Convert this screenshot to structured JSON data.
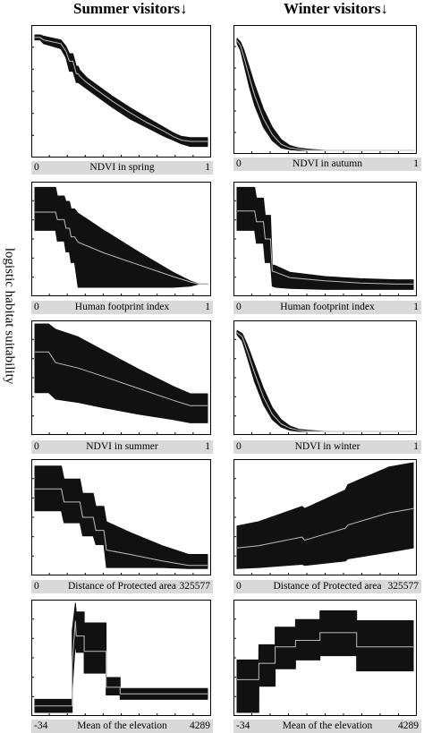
{
  "columns": [
    {
      "title": "Summer visitors↓"
    },
    {
      "title": "Winter visitors↓"
    }
  ],
  "ylabel": "logistic habitat suitability",
  "chart_data": [
    {
      "id": "p1",
      "type": "area",
      "title": "",
      "xlabel": "NDVI in spring",
      "xmin_label": "0",
      "xmax_label": "1",
      "xlim": [
        0,
        1
      ],
      "ylim": [
        0,
        1
      ],
      "x": [
        0,
        0.03,
        0.05,
        0.15,
        0.18,
        0.2,
        0.22,
        0.24,
        0.25,
        0.26,
        0.3,
        0.35,
        0.45,
        0.55,
        0.65,
        0.75,
        0.8,
        0.85,
        0.9,
        0.95,
        1.0
      ],
      "mean": [
        0.93,
        0.93,
        0.91,
        0.88,
        0.82,
        0.74,
        0.74,
        0.64,
        0.64,
        0.62,
        0.57,
        0.52,
        0.42,
        0.33,
        0.25,
        0.18,
        0.14,
        0.11,
        0.1,
        0.1,
        0.1
      ],
      "upper": [
        0.95,
        0.95,
        0.94,
        0.91,
        0.86,
        0.8,
        0.8,
        0.7,
        0.7,
        0.67,
        0.61,
        0.56,
        0.46,
        0.37,
        0.29,
        0.21,
        0.17,
        0.14,
        0.13,
        0.13,
        0.13
      ],
      "lower": [
        0.91,
        0.91,
        0.88,
        0.84,
        0.77,
        0.66,
        0.66,
        0.57,
        0.57,
        0.56,
        0.52,
        0.47,
        0.37,
        0.28,
        0.21,
        0.14,
        0.11,
        0.08,
        0.06,
        0.06,
        0.06
      ]
    },
    {
      "id": "p2",
      "type": "area",
      "title": "",
      "xlabel": "NDVI  in autumn",
      "xmin_label": "0",
      "xmax_label": "1",
      "xlim": [
        0,
        1
      ],
      "ylim": [
        0,
        1
      ],
      "x": [
        0,
        0.02,
        0.04,
        0.07,
        0.1,
        0.15,
        0.2,
        0.25,
        0.3,
        0.35,
        0.4,
        0.5,
        0.7,
        1.0
      ],
      "mean": [
        0.9,
        0.86,
        0.76,
        0.6,
        0.45,
        0.26,
        0.13,
        0.05,
        0.02,
        0.01,
        0.0,
        0.0,
        0.0,
        0.0
      ],
      "upper": [
        0.92,
        0.89,
        0.82,
        0.68,
        0.54,
        0.34,
        0.19,
        0.09,
        0.04,
        0.02,
        0.01,
        0.0,
        0.0,
        0.0
      ],
      "lower": [
        0.88,
        0.82,
        0.7,
        0.52,
        0.37,
        0.19,
        0.08,
        0.02,
        0.005,
        0.0,
        0.0,
        0.0,
        0.0,
        0.0
      ]
    },
    {
      "id": "p3",
      "type": "area",
      "title": "",
      "xlabel": "Human footprint index",
      "xmin_label": "0",
      "xmax_label": "1",
      "xlim": [
        0,
        1
      ],
      "ylim": [
        0,
        1
      ],
      "x": [
        0,
        0.12,
        0.13,
        0.17,
        0.18,
        0.2,
        0.21,
        0.23,
        0.25,
        0.4,
        0.6,
        0.8,
        0.9,
        0.95,
        1.0
      ],
      "mean": [
        0.75,
        0.75,
        0.68,
        0.68,
        0.6,
        0.6,
        0.52,
        0.52,
        0.47,
        0.37,
        0.26,
        0.15,
        0.1,
        0.08,
        0.08
      ],
      "upper": [
        0.98,
        0.98,
        0.9,
        0.9,
        0.85,
        0.85,
        0.78,
        0.78,
        0.74,
        0.58,
        0.38,
        0.19,
        0.11,
        0.08,
        0.08
      ],
      "lower": [
        0.58,
        0.58,
        0.48,
        0.48,
        0.38,
        0.38,
        0.28,
        0.28,
        0.05,
        0.05,
        0.05,
        0.05,
        0.06,
        0.08,
        0.08
      ]
    },
    {
      "id": "p4",
      "type": "area",
      "title": "",
      "xlabel": "Human footprint index",
      "xmin_label": "0",
      "xmax_label": "1",
      "xlim": [
        0,
        1
      ],
      "ylim": [
        0,
        1
      ],
      "x": [
        0,
        0.1,
        0.11,
        0.15,
        0.16,
        0.19,
        0.2,
        0.22,
        0.3,
        0.5,
        0.7,
        0.9,
        1.0
      ],
      "mean": [
        0.76,
        0.76,
        0.66,
        0.66,
        0.5,
        0.5,
        0.2,
        0.19,
        0.14,
        0.11,
        0.09,
        0.08,
        0.08
      ],
      "upper": [
        0.98,
        0.98,
        0.88,
        0.88,
        0.72,
        0.72,
        0.26,
        0.25,
        0.19,
        0.15,
        0.13,
        0.12,
        0.12
      ],
      "lower": [
        0.58,
        0.58,
        0.46,
        0.46,
        0.28,
        0.28,
        0.06,
        0.05,
        0.04,
        0.03,
        0.03,
        0.03,
        0.03
      ]
    },
    {
      "id": "p5",
      "type": "area",
      "title": "",
      "xlabel": "NDVI  in summer",
      "xmin_label": "0",
      "xmax_label": "1",
      "xlim": [
        0,
        1
      ],
      "ylim": [
        0,
        1
      ],
      "x": [
        0,
        0.08,
        0.12,
        0.25,
        0.4,
        0.6,
        0.8,
        0.9,
        1.0
      ],
      "mean": [
        0.74,
        0.74,
        0.64,
        0.59,
        0.51,
        0.4,
        0.29,
        0.24,
        0.24
      ],
      "upper": [
        1.0,
        1.0,
        0.95,
        0.88,
        0.75,
        0.58,
        0.42,
        0.35,
        0.35
      ],
      "lower": [
        0.36,
        0.36,
        0.3,
        0.27,
        0.22,
        0.16,
        0.11,
        0.08,
        0.08
      ]
    },
    {
      "id": "p6",
      "type": "area",
      "title": "",
      "xlabel": "NDVI  in winter",
      "xmin_label": "0",
      "xmax_label": "1",
      "xlim": [
        0,
        1
      ],
      "ylim": [
        0,
        1
      ],
      "x": [
        0,
        0.03,
        0.06,
        0.1,
        0.15,
        0.2,
        0.25,
        0.3,
        0.35,
        0.4,
        0.5,
        0.7,
        1.0
      ],
      "mean": [
        0.92,
        0.88,
        0.74,
        0.54,
        0.32,
        0.16,
        0.07,
        0.03,
        0.01,
        0.0,
        0.0,
        0.0,
        0.0
      ],
      "upper": [
        0.94,
        0.91,
        0.8,
        0.62,
        0.4,
        0.22,
        0.11,
        0.05,
        0.02,
        0.01,
        0.0,
        0.0,
        0.0
      ],
      "lower": [
        0.9,
        0.84,
        0.68,
        0.46,
        0.25,
        0.11,
        0.04,
        0.01,
        0.0,
        0.0,
        0.0,
        0.0,
        0.0
      ]
    },
    {
      "id": "p7",
      "type": "area",
      "title": "",
      "xlabel": "Distance of Protected area",
      "xmin_label": "0",
      "xmax_label": "325577",
      "xlim": [
        0,
        325577
      ],
      "ylim": [
        0,
        1
      ],
      "x": [
        0,
        50000,
        55000,
        85000,
        90000,
        110000,
        115000,
        130000,
        135000,
        180000,
        240000,
        290000,
        325577
      ],
      "mean": [
        0.76,
        0.76,
        0.64,
        0.64,
        0.5,
        0.5,
        0.38,
        0.38,
        0.2,
        0.16,
        0.1,
        0.06,
        0.06
      ],
      "upper": [
        0.97,
        0.97,
        0.85,
        0.85,
        0.72,
        0.72,
        0.6,
        0.6,
        0.46,
        0.36,
        0.24,
        0.16,
        0.16
      ],
      "lower": [
        0.56,
        0.56,
        0.45,
        0.45,
        0.33,
        0.33,
        0.25,
        0.25,
        0.04,
        0.04,
        0.04,
        0.03,
        0.03
      ]
    },
    {
      "id": "p8",
      "type": "area",
      "title": "",
      "xlabel": "Distance of Protected area",
      "xmin_label": "0",
      "xmax_label": "325577",
      "xlim": [
        0,
        325577
      ],
      "ylim": [
        0,
        1
      ],
      "x": [
        0,
        40000,
        120000,
        125000,
        200000,
        205000,
        280000,
        325577
      ],
      "mean": [
        0.22,
        0.24,
        0.32,
        0.29,
        0.4,
        0.43,
        0.54,
        0.58
      ],
      "upper": [
        0.42,
        0.46,
        0.6,
        0.58,
        0.75,
        0.8,
        0.96,
        1.0
      ],
      "lower": [
        0.03,
        0.04,
        0.07,
        0.06,
        0.1,
        0.12,
        0.18,
        0.22
      ]
    },
    {
      "id": "p9",
      "type": "area",
      "title": "",
      "xlabel": "Mean of the elevation",
      "xmin_label": "-34",
      "xmax_label": "4289",
      "xlim": [
        -34,
        4289
      ],
      "ylim": [
        0,
        1
      ],
      "x": [
        -34,
        900,
        901,
        980,
        1000,
        1200,
        1201,
        1750,
        1751,
        2100,
        2101,
        4289
      ],
      "mean": [
        0.06,
        0.06,
        0.45,
        0.84,
        0.7,
        0.7,
        0.56,
        0.56,
        0.23,
        0.23,
        0.17,
        0.17
      ],
      "upper": [
        0.12,
        0.12,
        0.75,
        1.0,
        0.92,
        0.92,
        0.82,
        0.82,
        0.32,
        0.32,
        0.22,
        0.22
      ],
      "lower": [
        0.0,
        0.0,
        0.2,
        0.65,
        0.55,
        0.55,
        0.36,
        0.36,
        0.16,
        0.16,
        0.12,
        0.12
      ]
    },
    {
      "id": "p10",
      "type": "area",
      "title": "",
      "xlabel": "Mean of the elevation",
      "xmin_label": "-34",
      "xmax_label": "4289",
      "xlim": [
        -34,
        4289
      ],
      "ylim": [
        0,
        1
      ],
      "x": [
        -34,
        500,
        501,
        900,
        901,
        1400,
        1401,
        2000,
        2001,
        2900,
        2901,
        4289
      ],
      "mean": [
        0.3,
        0.3,
        0.45,
        0.45,
        0.6,
        0.6,
        0.66,
        0.66,
        0.73,
        0.73,
        0.6,
        0.6
      ],
      "upper": [
        0.48,
        0.48,
        0.62,
        0.62,
        0.78,
        0.78,
        0.85,
        0.85,
        0.93,
        0.93,
        0.84,
        0.84
      ],
      "lower": [
        0.0,
        0.0,
        0.24,
        0.24,
        0.4,
        0.4,
        0.48,
        0.48,
        0.52,
        0.52,
        0.38,
        0.38
      ]
    }
  ]
}
